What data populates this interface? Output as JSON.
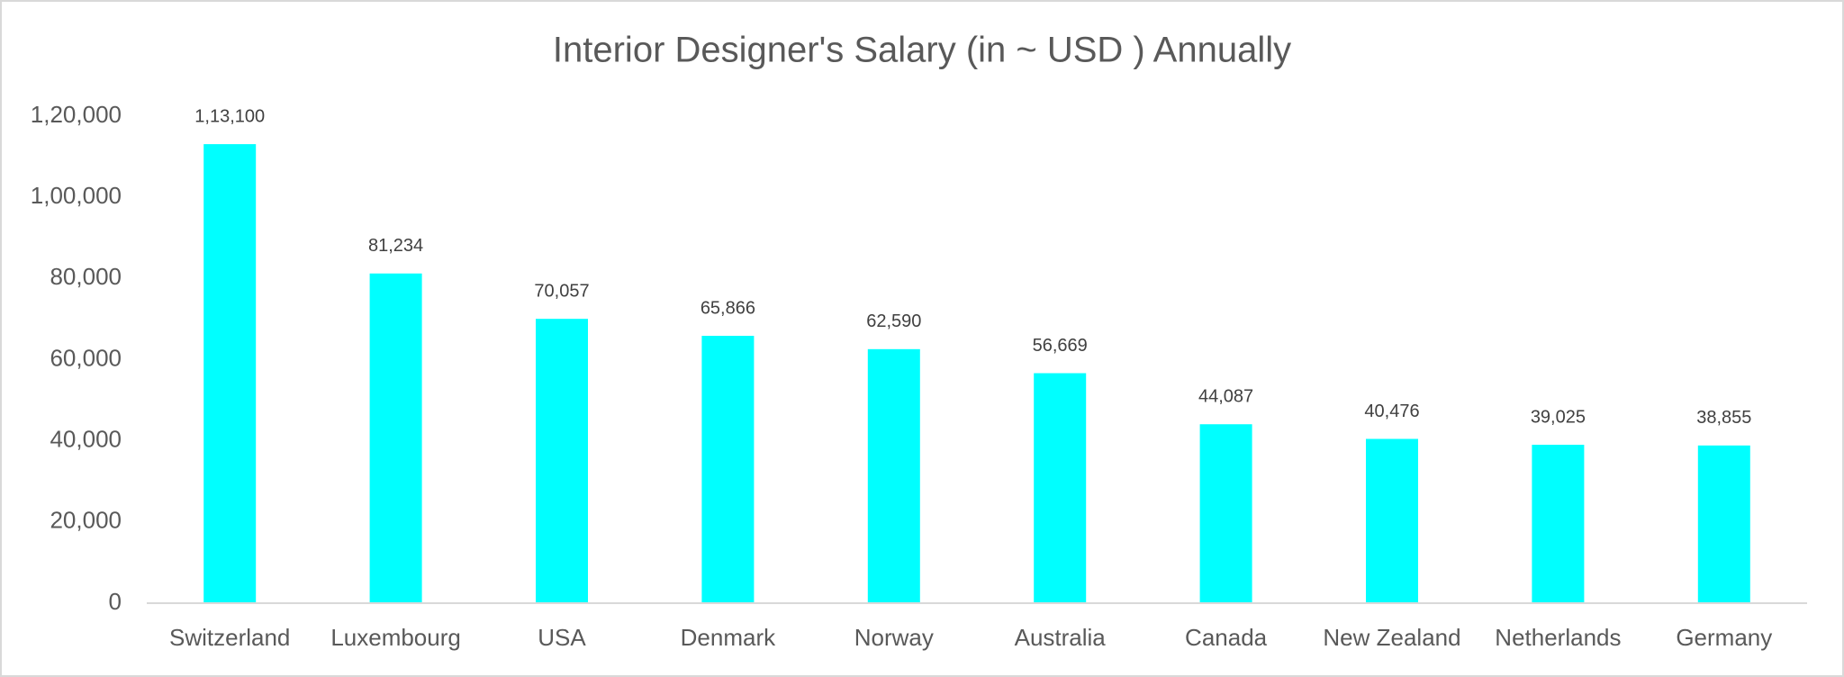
{
  "chart_data": {
    "type": "bar",
    "title": "Interior Designer's Salary (in ~ USD ) Annually",
    "categories": [
      "Switzerland",
      "Luxembourg",
      "USA",
      "Denmark",
      "Norway",
      "Australia",
      "Canada",
      "New Zealand",
      "Netherlands",
      "Germany"
    ],
    "values": [
      113100,
      81234,
      70057,
      65866,
      62590,
      56669,
      44087,
      40476,
      39025,
      38855
    ],
    "value_labels": [
      "1,13,100",
      "81,234",
      "70,057",
      "65,866",
      "62,590",
      "56,669",
      "44,087",
      "40,476",
      "39,025",
      "38,855"
    ],
    "color": "#00ffff",
    "ylim": [
      0,
      120000
    ],
    "yticks": [
      0,
      {
        "value": 20000,
        "label": "20,000"
      },
      {
        "value": 40000,
        "label": "40,000"
      },
      {
        "value": 60000,
        "label": "60,000"
      },
      {
        "value": 80000,
        "label": "80,000"
      },
      {
        "value": 100000,
        "label": "1,00,000"
      },
      {
        "value": 120000,
        "label": "1,20,000"
      }
    ],
    "grid": false
  }
}
